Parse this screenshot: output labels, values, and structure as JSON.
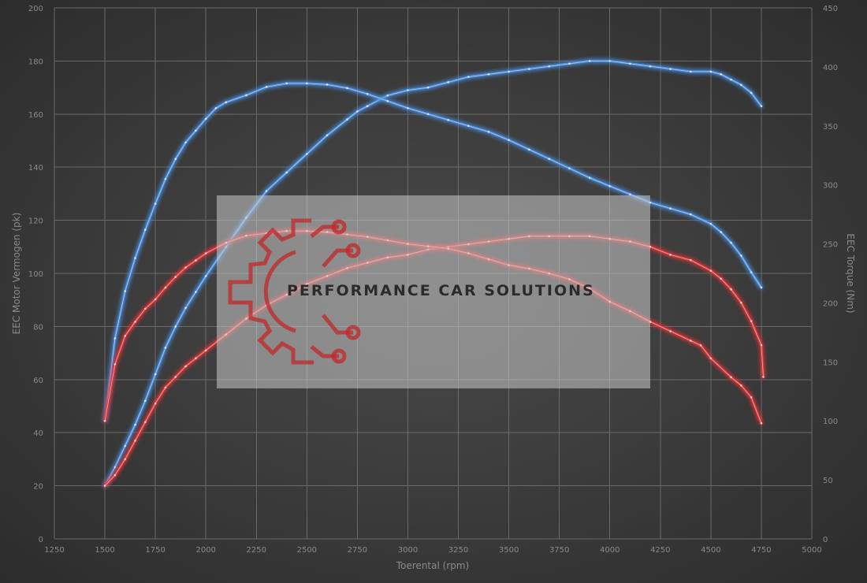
{
  "chart_data": {
    "type": "line",
    "xlabel": "Toerental (rpm)",
    "ylabel_left": "EEC Motor Vermogen (pk)",
    "ylabel_right": "EEC Torque (Nm)",
    "xlim": [
      1250,
      5000
    ],
    "ylim_left": [
      0,
      200
    ],
    "ylim_right": [
      0,
      450
    ],
    "x_ticks": [
      1250,
      1500,
      1750,
      2000,
      2250,
      2500,
      2750,
      3000,
      3250,
      3500,
      3750,
      4000,
      4250,
      4500,
      4750,
      5000
    ],
    "y_ticks_left": [
      0,
      20,
      40,
      60,
      80,
      100,
      120,
      140,
      160,
      180,
      200
    ],
    "y_ticks_right": [
      0,
      50,
      100,
      150,
      200,
      250,
      300,
      350,
      400,
      450
    ],
    "grid": true,
    "series": [
      {
        "axis": "left",
        "color": "#4a8fe0",
        "points": [
          [
            1500,
            20
          ],
          [
            1550,
            27
          ],
          [
            1600,
            35
          ],
          [
            1650,
            43
          ],
          [
            1700,
            52
          ],
          [
            1750,
            62
          ],
          [
            1800,
            72
          ],
          [
            1850,
            80
          ],
          [
            1900,
            87
          ],
          [
            1950,
            93
          ],
          [
            2000,
            99
          ],
          [
            2100,
            110
          ],
          [
            2200,
            121
          ],
          [
            2300,
            131
          ],
          [
            2400,
            138
          ],
          [
            2500,
            145
          ],
          [
            2600,
            152
          ],
          [
            2700,
            158
          ],
          [
            2750,
            161
          ],
          [
            2800,
            163
          ],
          [
            2900,
            167
          ],
          [
            3000,
            169
          ],
          [
            3100,
            170
          ],
          [
            3200,
            172
          ],
          [
            3300,
            174
          ],
          [
            3400,
            175
          ],
          [
            3500,
            176
          ],
          [
            3600,
            177
          ],
          [
            3700,
            178
          ],
          [
            3800,
            179
          ],
          [
            3900,
            180
          ],
          [
            4000,
            180
          ],
          [
            4100,
            179
          ],
          [
            4200,
            178
          ],
          [
            4300,
            177
          ],
          [
            4400,
            176
          ],
          [
            4500,
            176
          ],
          [
            4550,
            175
          ],
          [
            4600,
            173
          ],
          [
            4650,
            171
          ],
          [
            4700,
            168
          ],
          [
            4750,
            163
          ]
        ]
      },
      {
        "axis": "right",
        "color": "#4a8fe0",
        "points": [
          [
            1500,
            100
          ],
          [
            1550,
            170
          ],
          [
            1600,
            210
          ],
          [
            1650,
            238
          ],
          [
            1700,
            262
          ],
          [
            1750,
            284
          ],
          [
            1800,
            305
          ],
          [
            1850,
            322
          ],
          [
            1900,
            336
          ],
          [
            1950,
            346
          ],
          [
            2000,
            356
          ],
          [
            2050,
            365
          ],
          [
            2100,
            370
          ],
          [
            2200,
            376
          ],
          [
            2300,
            383
          ],
          [
            2400,
            386
          ],
          [
            2500,
            386
          ],
          [
            2600,
            385
          ],
          [
            2700,
            382
          ],
          [
            2800,
            377
          ],
          [
            2900,
            371
          ],
          [
            3000,
            365
          ],
          [
            3100,
            360
          ],
          [
            3200,
            355
          ],
          [
            3300,
            350
          ],
          [
            3400,
            345
          ],
          [
            3500,
            338
          ],
          [
            3600,
            330
          ],
          [
            3700,
            322
          ],
          [
            3800,
            314
          ],
          [
            3900,
            306
          ],
          [
            4000,
            299
          ],
          [
            4100,
            292
          ],
          [
            4200,
            285
          ],
          [
            4300,
            280
          ],
          [
            4400,
            275
          ],
          [
            4500,
            267
          ],
          [
            4550,
            260
          ],
          [
            4600,
            251
          ],
          [
            4650,
            240
          ],
          [
            4700,
            226
          ],
          [
            4750,
            213
          ]
        ]
      },
      {
        "axis": "left",
        "color": "#e0383a",
        "points": [
          [
            1500,
            20
          ],
          [
            1550,
            24
          ],
          [
            1600,
            30
          ],
          [
            1650,
            37
          ],
          [
            1700,
            44
          ],
          [
            1750,
            51
          ],
          [
            1800,
            57
          ],
          [
            1850,
            61
          ],
          [
            1900,
            65
          ],
          [
            1950,
            68
          ],
          [
            2000,
            71
          ],
          [
            2100,
            77
          ],
          [
            2200,
            83
          ],
          [
            2300,
            88
          ],
          [
            2400,
            92
          ],
          [
            2500,
            96
          ],
          [
            2600,
            99
          ],
          [
            2700,
            102
          ],
          [
            2800,
            104
          ],
          [
            2900,
            106
          ],
          [
            3000,
            107
          ],
          [
            3100,
            109
          ],
          [
            3200,
            110
          ],
          [
            3300,
            111
          ],
          [
            3400,
            112
          ],
          [
            3500,
            113
          ],
          [
            3600,
            114
          ],
          [
            3700,
            114
          ],
          [
            3800,
            114
          ],
          [
            3900,
            114
          ],
          [
            4000,
            113
          ],
          [
            4100,
            112
          ],
          [
            4200,
            110
          ],
          [
            4300,
            107
          ],
          [
            4400,
            105
          ],
          [
            4500,
            101
          ],
          [
            4550,
            98
          ],
          [
            4600,
            94
          ],
          [
            4650,
            89
          ],
          [
            4700,
            82
          ],
          [
            4750,
            73
          ],
          [
            4760,
            61
          ]
        ]
      },
      {
        "axis": "right",
        "color": "#e0383a",
        "points": [
          [
            1500,
            100
          ],
          [
            1550,
            148
          ],
          [
            1600,
            172
          ],
          [
            1650,
            184
          ],
          [
            1700,
            195
          ],
          [
            1750,
            203
          ],
          [
            1800,
            213
          ],
          [
            1850,
            222
          ],
          [
            1900,
            230
          ],
          [
            1950,
            236
          ],
          [
            2000,
            242
          ],
          [
            2100,
            251
          ],
          [
            2200,
            257
          ],
          [
            2300,
            259
          ],
          [
            2400,
            261
          ],
          [
            2500,
            261
          ],
          [
            2600,
            260
          ],
          [
            2700,
            258
          ],
          [
            2800,
            256
          ],
          [
            2900,
            253
          ],
          [
            3000,
            250
          ],
          [
            3100,
            248
          ],
          [
            3200,
            246
          ],
          [
            3300,
            242
          ],
          [
            3400,
            237
          ],
          [
            3500,
            232
          ],
          [
            3600,
            229
          ],
          [
            3700,
            225
          ],
          [
            3800,
            220
          ],
          [
            3900,
            212
          ],
          [
            4000,
            201
          ],
          [
            4100,
            193
          ],
          [
            4200,
            184
          ],
          [
            4300,
            176
          ],
          [
            4400,
            168
          ],
          [
            4450,
            164
          ],
          [
            4500,
            153
          ],
          [
            4600,
            137
          ],
          [
            4650,
            130
          ],
          [
            4700,
            120
          ],
          [
            4750,
            98
          ]
        ]
      }
    ]
  },
  "watermark": {
    "brand": "PERFORMANCE CAR SOLUTIONS",
    "logo_color": "#c02828"
  }
}
